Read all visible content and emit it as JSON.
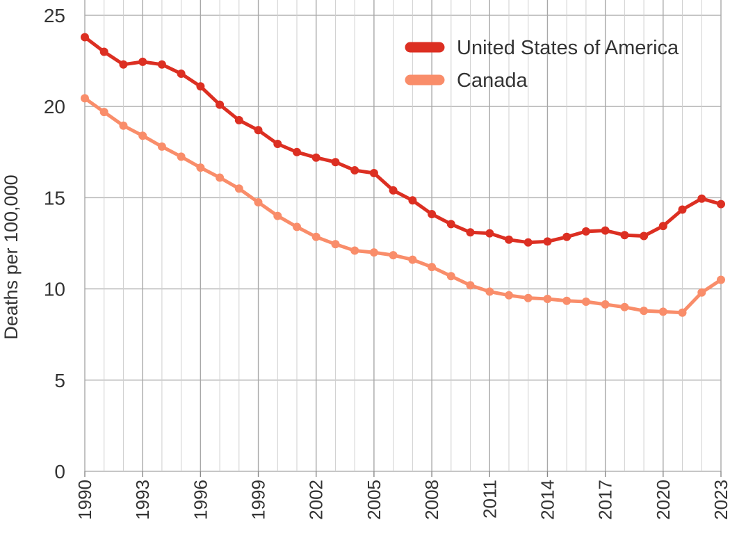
{
  "chart_data": {
    "type": "line",
    "title": "",
    "xlabel": "",
    "ylabel": "Deaths per 100,000",
    "xlim": [
      1990,
      2023
    ],
    "ylim": [
      0,
      25
    ],
    "y_ticks": [
      0,
      5,
      10,
      15,
      20,
      25
    ],
    "x_tick_labels": [
      "1990",
      "1993",
      "1996",
      "1999",
      "2002",
      "2005",
      "2008",
      "2011",
      "2014",
      "2017",
      "2020",
      "2023"
    ],
    "grid": true,
    "legend_position": "top-right",
    "x": [
      1990,
      1991,
      1992,
      1993,
      1994,
      1995,
      1996,
      1997,
      1998,
      1999,
      2000,
      2001,
      2002,
      2003,
      2004,
      2005,
      2006,
      2007,
      2008,
      2009,
      2010,
      2011,
      2012,
      2013,
      2014,
      2015,
      2016,
      2017,
      2018,
      2019,
      2020,
      2021,
      2022,
      2023
    ],
    "series": [
      {
        "name": "United States of America",
        "color": "#dc2f22",
        "values": [
          23.8,
          23.0,
          22.3,
          22.45,
          22.3,
          21.8,
          21.1,
          20.1,
          19.25,
          18.7,
          17.95,
          17.5,
          17.2,
          16.95,
          16.5,
          16.35,
          15.4,
          14.85,
          14.1,
          13.55,
          13.1,
          13.05,
          12.7,
          12.55,
          12.6,
          12.85,
          13.15,
          13.2,
          12.95,
          12.9,
          13.45,
          14.35,
          14.95,
          14.65
        ]
      },
      {
        "name": "Canada",
        "color": "#f98d6a",
        "values": [
          20.45,
          19.7,
          18.95,
          18.4,
          17.8,
          17.25,
          16.65,
          16.1,
          15.5,
          14.75,
          14.0,
          13.4,
          12.85,
          12.45,
          12.1,
          12.0,
          11.85,
          11.6,
          11.2,
          10.7,
          10.2,
          9.85,
          9.65,
          9.5,
          9.45,
          9.35,
          9.3,
          9.15,
          9.0,
          8.8,
          8.75,
          8.7,
          9.8,
          10.5
        ]
      }
    ]
  }
}
